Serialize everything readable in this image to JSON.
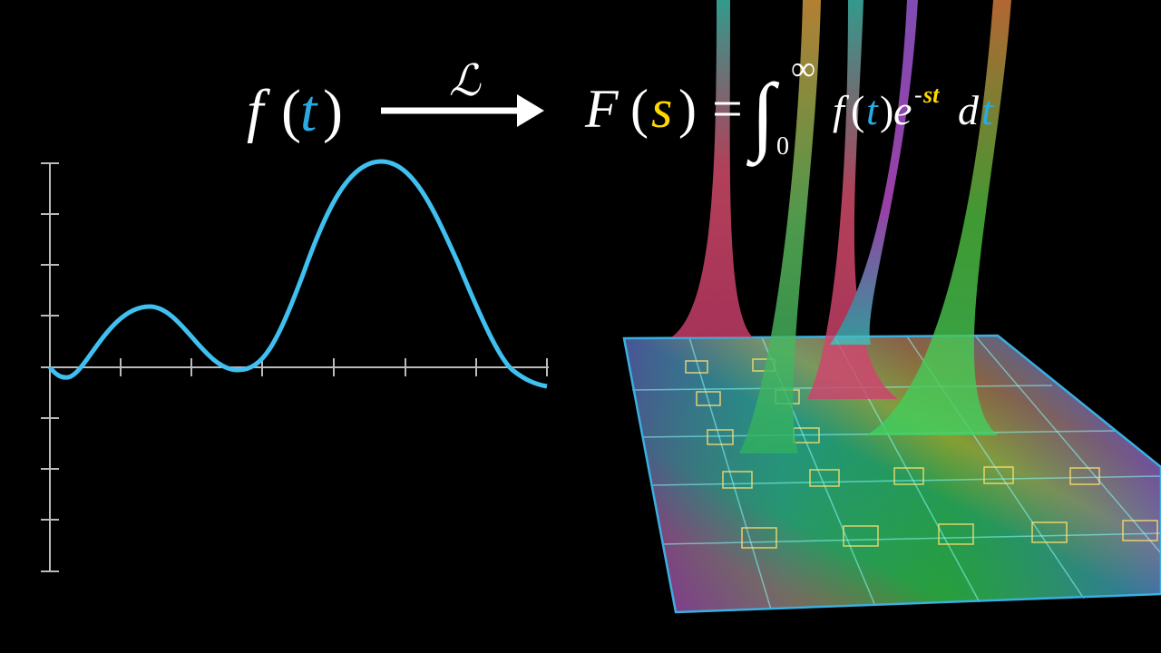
{
  "formula": {
    "input": [
      "f",
      "(",
      "t",
      ")"
    ],
    "operator": "ℒ",
    "output": [
      "F",
      "(",
      "s",
      ")",
      "=",
      "∫",
      "∞",
      "0",
      "f",
      "(",
      "t",
      ")",
      "e",
      "-",
      "st",
      "d",
      "t"
    ]
  }
}
